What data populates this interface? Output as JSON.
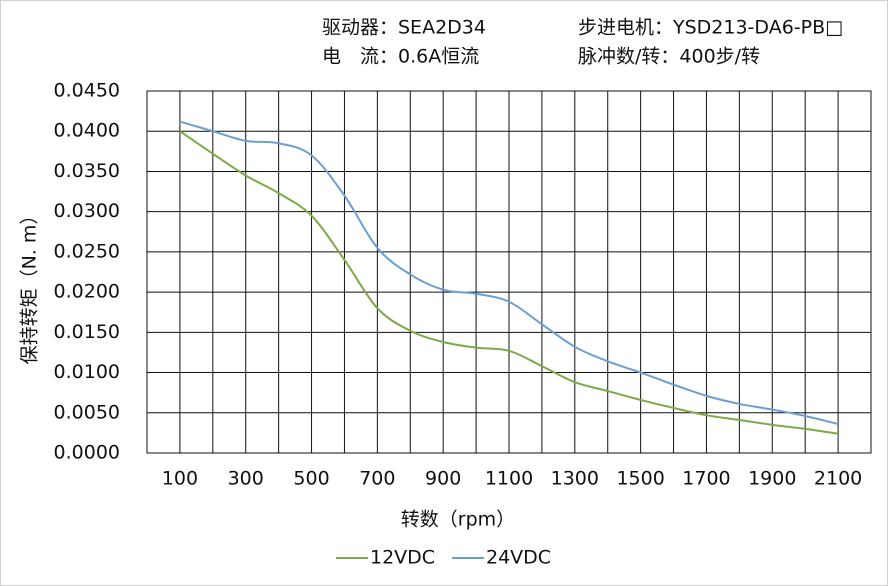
{
  "chart_data": {
    "type": "line",
    "info": [
      "驱动器：SEA2D34",
      "步进电机：YSD213-DA6-PB□",
      "电　流：0.6A恒流",
      "脉冲数/转：400步/转"
    ],
    "xlabel": "转数（rpm）",
    "ylabel": "保持转矩（N. m）",
    "x": [
      100,
      200,
      300,
      400,
      500,
      600,
      700,
      800,
      900,
      1000,
      1100,
      1200,
      1300,
      1400,
      1500,
      1600,
      1700,
      1800,
      1900,
      2000,
      2100
    ],
    "series": [
      {
        "name": "12VDC",
        "color": "#7aab48",
        "values": [
          0.04,
          0.0372,
          0.0345,
          0.0323,
          0.0295,
          0.024,
          0.018,
          0.0152,
          0.0138,
          0.0131,
          0.0127,
          0.0108,
          0.0088,
          0.0077,
          0.0066,
          0.0056,
          0.0047,
          0.0041,
          0.0035,
          0.003,
          0.0024
        ]
      },
      {
        "name": "24VDC",
        "color": "#6b9fd1",
        "values": [
          0.0412,
          0.04,
          0.0388,
          0.0385,
          0.037,
          0.032,
          0.0255,
          0.0222,
          0.0203,
          0.0198,
          0.0188,
          0.016,
          0.0132,
          0.0114,
          0.01,
          0.0085,
          0.0071,
          0.0061,
          0.0054,
          0.0046,
          0.0036
        ]
      }
    ],
    "xlim": [
      0,
      2200
    ],
    "xticks": [
      100,
      300,
      500,
      700,
      900,
      1100,
      1300,
      1500,
      1700,
      1900,
      2100
    ],
    "xgridlines": [
      200,
      400,
      600,
      800,
      1000,
      1200,
      1400,
      1600,
      1800,
      2000
    ],
    "ylim": [
      0,
      0.045
    ],
    "yticks": [
      {
        "value": 0,
        "label": "0.0000"
      },
      {
        "value": 0.005,
        "label": "0.0050"
      },
      {
        "value": 0.01,
        "label": "0.0100"
      },
      {
        "value": 0.015,
        "label": "0.0150"
      },
      {
        "value": 0.02,
        "label": "0.0200"
      },
      {
        "value": 0.025,
        "label": "0.0250"
      },
      {
        "value": 0.03,
        "label": "0.0300"
      },
      {
        "value": 0.035,
        "label": "0.0350"
      },
      {
        "value": 0.04,
        "label": "0.0400"
      },
      {
        "value": 0.045,
        "label": "0.0450"
      }
    ],
    "grid": true
  }
}
